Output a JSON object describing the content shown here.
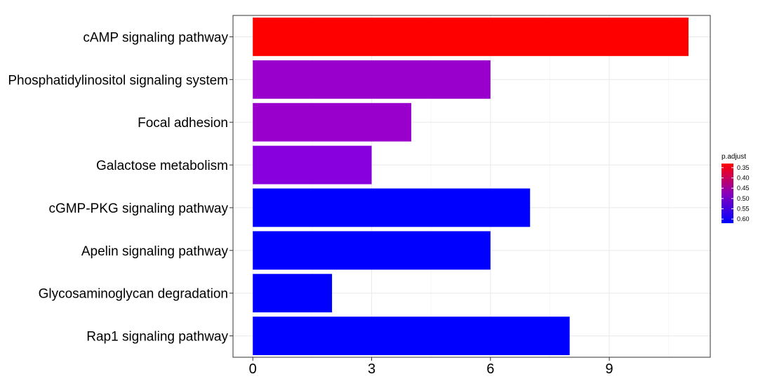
{
  "chart_data": {
    "type": "bar",
    "orientation": "horizontal",
    "categories": [
      "cAMP signaling pathway",
      "Phosphatidylinositol signaling system",
      "Focal adhesion",
      "Galactose metabolism",
      "cGMP-PKG signaling pathway",
      "Apelin signaling pathway",
      "Glycosaminoglycan degradation",
      "Rap1 signaling pathway"
    ],
    "values": [
      11,
      6,
      4,
      3,
      7,
      6,
      2,
      8
    ],
    "p_adjust": [
      0.33,
      0.5,
      0.51,
      0.53,
      0.62,
      0.62,
      0.62,
      0.62
    ],
    "bar_colors": [
      "#FF0000",
      "#9900CC",
      "#9900CC",
      "#8800DD",
      "#0000FF",
      "#0000FF",
      "#0000FF",
      "#0000FF"
    ],
    "title": "",
    "xlabel": "",
    "ylabel": "",
    "xlim": [
      -0.5,
      11.55
    ],
    "xticks": [
      0,
      3,
      6,
      9
    ],
    "grid": true,
    "legend": {
      "title": "p.adjust",
      "position": "right",
      "range": [
        0.33,
        0.62
      ],
      "color_low": "#FF0000",
      "color_high": "#0000FF",
      "ticks": [
        0.35,
        0.4,
        0.45,
        0.5,
        0.55,
        0.6
      ],
      "tick_labels": [
        "0.35",
        "0.40",
        "0.45",
        "0.50",
        "0.55",
        "0.60"
      ]
    }
  }
}
